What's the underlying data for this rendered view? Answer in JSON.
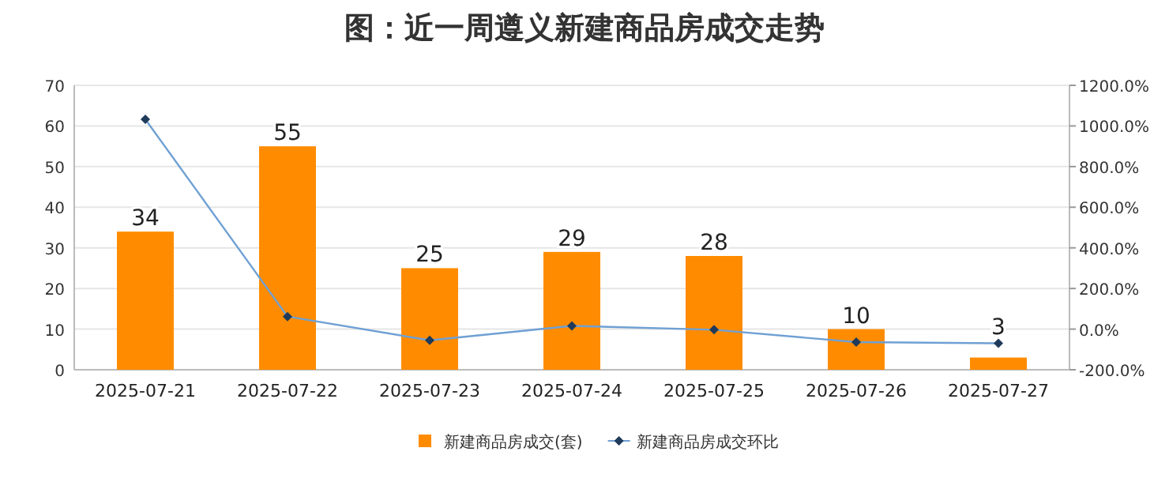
{
  "chart_data": {
    "type": "bar",
    "title": "图：近一周遵义新建商品房成交走势",
    "categories": [
      "2025-07-21",
      "2025-07-22",
      "2025-07-23",
      "2025-07-24",
      "2025-07-25",
      "2025-07-26",
      "2025-07-27"
    ],
    "series": [
      {
        "name": "新建商品房成交(套)",
        "color": "#ff8c00",
        "values": [
          34,
          55,
          25,
          29,
          28,
          10,
          3
        ],
        "value_labels": [
          "34",
          "55",
          "25",
          "29",
          "28",
          "10",
          "3"
        ]
      },
      {
        "name": "新建商品房成交环比",
        "type": "line",
        "axis": "y2",
        "color": "#6fa0d4",
        "marker": "diamond",
        "values": [
          1033,
          62,
          -55,
          16,
          -3,
          -64,
          -70
        ]
      }
    ],
    "ylim": [
      0,
      70
    ],
    "yticks": [
      0,
      10,
      20,
      30,
      40,
      50,
      60,
      70
    ],
    "y2lim": [
      -200,
      1200
    ],
    "y2ticks": [
      {
        "value": -200,
        "label": "-200.0%"
      },
      {
        "value": 0,
        "label": "0.0%"
      },
      {
        "value": 200,
        "label": "200.0%"
      },
      {
        "value": 400,
        "label": "400.0%"
      },
      {
        "value": 600,
        "label": "600.0%"
      },
      {
        "value": 800,
        "label": "800.0%"
      },
      {
        "value": 1000,
        "label": "1000.0%"
      },
      {
        "value": 1200,
        "label": "1200.0%"
      }
    ],
    "grid": "y",
    "legend": "bottom"
  }
}
